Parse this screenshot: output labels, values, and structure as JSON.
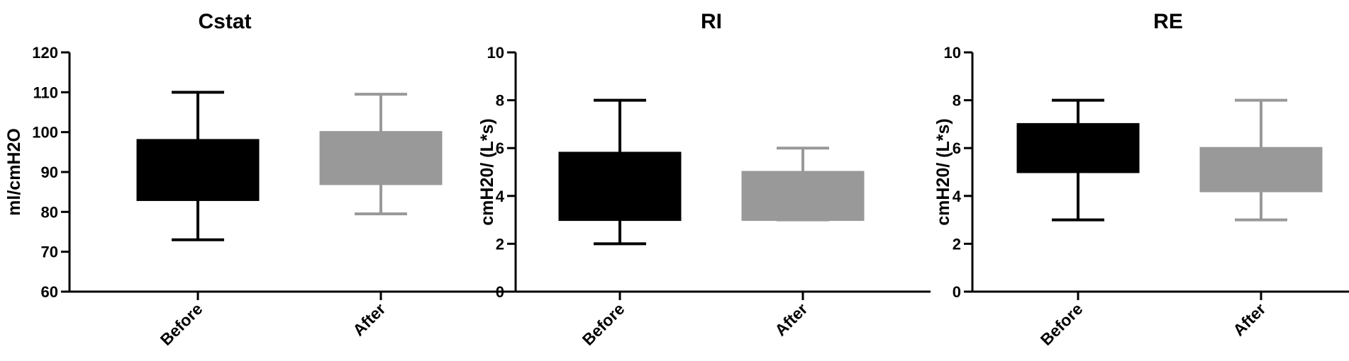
{
  "chart_data": [
    {
      "type": "box",
      "title": "Cstat",
      "ylabel": "ml/cmH2O",
      "ylim": [
        60,
        120
      ],
      "yticks": [
        60,
        70,
        80,
        90,
        100,
        110,
        120
      ],
      "categories": [
        "Before",
        "After"
      ],
      "boxes": [
        {
          "category": "Before",
          "min": 73,
          "q1": 83,
          "q3": 98,
          "max": 110,
          "color": "#000000"
        },
        {
          "category": "After",
          "min": 79.5,
          "q1": 87,
          "q3": 100,
          "max": 109.5,
          "color": "#999999"
        }
      ]
    },
    {
      "type": "box",
      "title": "RI",
      "ylabel": "cmH20/ (L*s)",
      "ylim": [
        0,
        10
      ],
      "yticks": [
        0,
        2,
        4,
        6,
        8,
        10
      ],
      "categories": [
        "Before",
        "After"
      ],
      "boxes": [
        {
          "category": "Before",
          "min": 2,
          "q1": 3,
          "q3": 5.8,
          "max": 8,
          "color": "#000000"
        },
        {
          "category": "After",
          "min": 3,
          "q1": 3,
          "q3": 5,
          "max": 6,
          "color": "#999999"
        }
      ]
    },
    {
      "type": "box",
      "title": "RE",
      "ylabel": "cmH20/ (L*s)",
      "ylim": [
        0,
        10
      ],
      "yticks": [
        0,
        2,
        4,
        6,
        8,
        10
      ],
      "categories": [
        "Before",
        "After"
      ],
      "boxes": [
        {
          "category": "Before",
          "min": 3,
          "q1": 5,
          "q3": 7,
          "max": 8,
          "color": "#000000"
        },
        {
          "category": "After",
          "min": 3,
          "q1": 4.2,
          "q3": 6,
          "max": 8,
          "color": "#999999"
        }
      ]
    }
  ]
}
